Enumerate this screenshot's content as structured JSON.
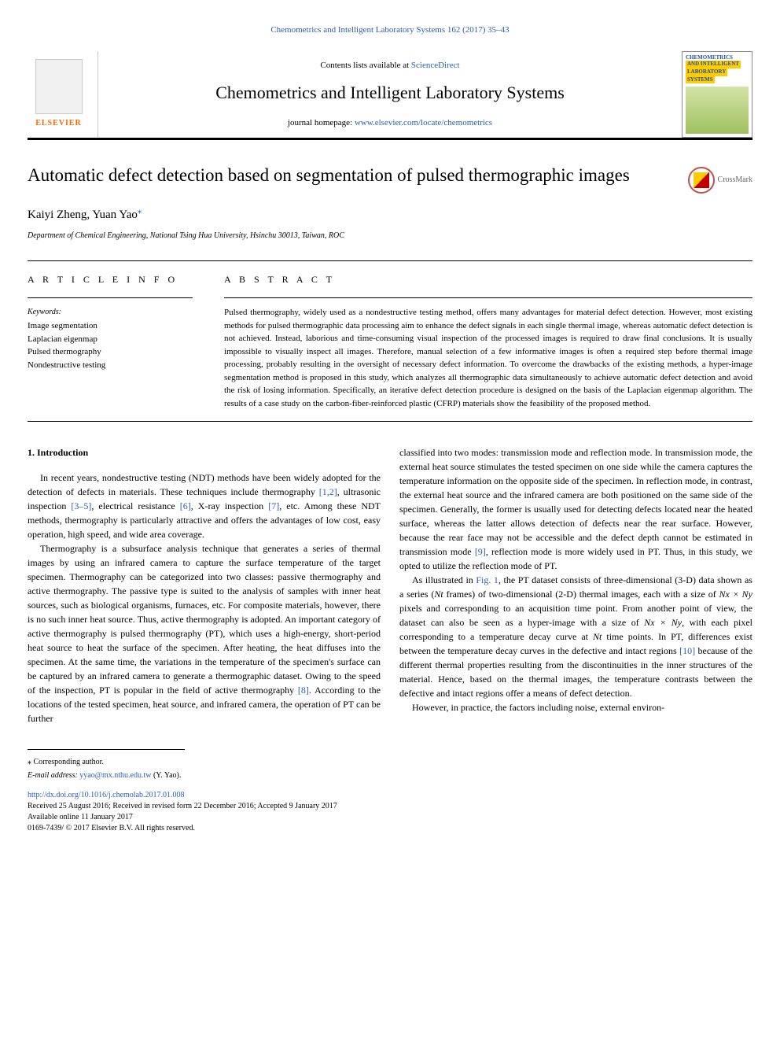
{
  "top_journal_link": "Chemometrics and Intelligent Laboratory Systems 162 (2017) 35–43",
  "header": {
    "contents_prefix": "Contents lists available at ",
    "sciencedirect": "ScienceDirect",
    "journal_name": "Chemometrics and Intelligent Laboratory Systems",
    "homepage_prefix": "journal homepage: ",
    "homepage_url": "www.elsevier.com/locate/chemometrics",
    "elsevier": "ELSEVIER",
    "cover_line1": "CHEMOMETRICS",
    "cover_line2": "AND INTELLIGENT",
    "cover_line3": "LABORATORY",
    "cover_line4": "SYSTEMS"
  },
  "crossmark_label": "CrossMark",
  "article": {
    "title": "Automatic defect detection based on segmentation of pulsed thermographic images",
    "authors": "Kaiyi Zheng, Yuan Yao",
    "corresponding_mark": "⁎",
    "affiliation": "Department of Chemical Engineering, National Tsing Hua University, Hsinchu 30013, Taiwan, ROC"
  },
  "info": {
    "heading": "A R T I C L E  I N F O",
    "keywords_label": "Keywords:",
    "keywords": "Image segmentation\nLaplacian eigenmap\nPulsed thermography\nNondestructive testing"
  },
  "abstract": {
    "heading": "A B S T R A C T",
    "text": "Pulsed thermography, widely used as a nondestructive testing method, offers many advantages for material defect detection. However, most existing methods for pulsed thermographic data processing aim to enhance the defect signals in each single thermal image, whereas automatic defect detection is not achieved. Instead, laborious and time-consuming visual inspection of the processed images is required to draw final conclusions. It is usually impossible to visually inspect all images. Therefore, manual selection of a few informative images is often a required step before thermal image processing, probably resulting in the oversight of necessary defect information. To overcome the drawbacks of the existing methods, a hyper-image segmentation method is proposed in this study, which analyzes all thermographic data simultaneously to achieve automatic defect detection and avoid the risk of losing information. Specifically, an iterative defect detection procedure is designed on the basis of the Laplacian eigenmap algorithm. The results of a case study on the carbon-fiber-reinforced plastic (CFRP) materials show the feasibility of the proposed method."
  },
  "body": {
    "intro_heading": "1. Introduction",
    "col1_p1_a": "In recent years, nondestructive testing (NDT) methods have been widely adopted for the detection of defects in materials. These techniques include thermography ",
    "ref12": "[1,2]",
    "col1_p1_b": ", ultrasonic inspection ",
    "ref35": "[3–5]",
    "col1_p1_c": ", electrical resistance ",
    "ref6": "[6]",
    "col1_p1_d": ", X-ray inspection ",
    "ref7": "[7]",
    "col1_p1_e": ", etc. Among these NDT methods, thermography is particularly attractive and offers the advantages of low cost, easy operation, high speed, and wide area coverage.",
    "col1_p2_a": "Thermography is a subsurface analysis technique that generates a series of thermal images by using an infrared camera to capture the surface temperature of the target specimen. Thermography can be categorized into two classes: passive thermography and active thermography. The passive type is suited to the analysis of samples with inner heat sources, such as biological organisms, furnaces, etc. For composite materials, however, there is no such inner heat source. Thus, active thermography is adopted. An important category of active thermography is pulsed thermography (PT), which uses a high-energy, short-period heat source to heat the surface of the specimen. After heating, the heat diffuses into the specimen. At the same time, the variations in the temperature of the specimen's surface can be captured by an infrared camera to generate a thermographic dataset. Owing to the speed of the inspection, PT is popular in the field of active thermography ",
    "ref8": "[8]",
    "col1_p2_b": ". According to the locations of the tested specimen, heat source, and infrared camera, the operation of PT can be further",
    "col2_p1_a": "classified into two modes: transmission mode and reflection mode. In transmission mode, the external heat source stimulates the tested specimen on one side while the camera captures the temperature information on the opposite side of the specimen. In reflection mode, in contrast, the external heat source and the infrared camera are both positioned on the same side of the specimen. Generally, the former is usually used for detecting defects located near the heated surface, whereas the latter allows detection of defects near the rear surface. However, because the rear face may not be accessible and the defect depth cannot be estimated in transmission mode ",
    "ref9": "[9]",
    "col2_p1_b": ", reflection mode is more widely used in PT. Thus, in this study, we opted to utilize the reflection mode of PT.",
    "col2_p2_a": "As illustrated in ",
    "fig1": "Fig. 1",
    "col2_p2_b": ", the PT dataset consists of three-dimensional (3-D) data shown as a series (",
    "nt": "Nt",
    "col2_p2_c": " frames) of two-dimensional (2-D) thermal images, each with a size of ",
    "nxny1": "Nx × Ny",
    "col2_p2_d": " pixels and corresponding to an acquisition time point. From another point of view, the dataset can also be seen as a hyper-image with a size of ",
    "nxny2": "Nx × Ny",
    "col2_p2_e": ", with each pixel corresponding to a temperature decay curve at ",
    "nt2": "Nt",
    "col2_p2_f": " time points. In PT, differences exist between the temperature decay curves in the defective and intact regions ",
    "ref10": "[10]",
    "col2_p2_g": " because of the different thermal properties resulting from the discontinuities in the inner structures of the material. Hence, based on the thermal images, the temperature contrasts between the defective and intact regions offer a means of defect detection.",
    "col2_p3": "However, in practice, the factors including noise, external environ-"
  },
  "footer": {
    "corresponding": "⁎ Corresponding author.",
    "email_label": "E-mail address: ",
    "email": "yyao@mx.nthu.edu.tw",
    "email_suffix": " (Y. Yao).",
    "doi": "http://dx.doi.org/10.1016/j.chemolab.2017.01.008",
    "received": "Received 25 August 2016; Received in revised form 22 December 2016; Accepted 9 January 2017",
    "available": "Available online 11 January 2017",
    "copyright": "0169-7439/ © 2017 Elsevier B.V. All rights reserved."
  }
}
